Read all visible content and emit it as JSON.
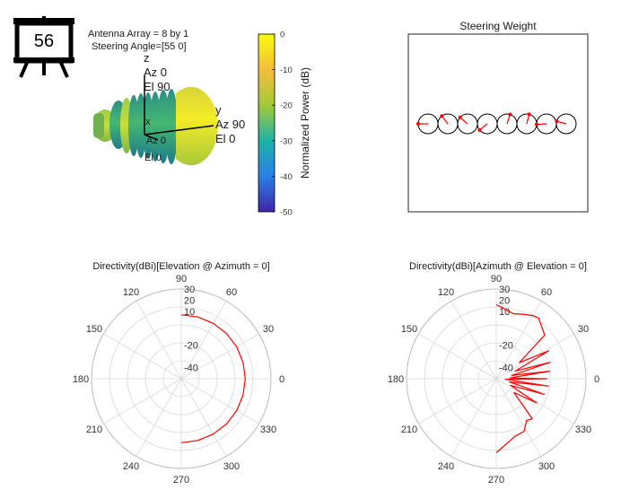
{
  "badge": {
    "number": "56"
  },
  "pattern3d": {
    "info_line1": "Antenna Array = 8 by 1",
    "info_line2": "Steering Angle=[55 0]",
    "axis_z": {
      "name": "z",
      "az": "Az 0",
      "el": "El 90"
    },
    "axis_y": {
      "name": "y",
      "az": "Az 90",
      "el": "El 0"
    },
    "axis_x": {
      "name": "x",
      "az": "Az 0",
      "el": "El 0"
    },
    "colorbar": {
      "label": "Normalized Power (dB)",
      "ticks": [
        0,
        -10,
        -20,
        -30,
        -40,
        -50
      ],
      "range": [
        -50,
        0
      ]
    }
  },
  "steering": {
    "title": "Steering Weight",
    "element_count": 8,
    "phases_deg": [
      180,
      127,
      139,
      219,
      72,
      76,
      183,
      165
    ],
    "circle_color": "#000000",
    "arrow_color": "#ff0000"
  },
  "chart_data": [
    {
      "type": "polar-line",
      "title": "Directivity(dBi)[Elevation @ Azimuth = 0]",
      "angle_ticks": [
        0,
        30,
        60,
        90,
        120,
        150,
        180,
        210,
        240,
        270,
        300,
        330
      ],
      "radial_ticks": [
        -40,
        -20,
        10,
        20,
        30
      ],
      "radial_range": [
        -50,
        30
      ],
      "color": "#ff0000",
      "series": [
        {
          "theta": [
            -90,
            -75,
            -60,
            -45,
            -30,
            -15,
            0,
            15,
            30,
            45,
            60,
            75,
            90
          ],
          "r": [
            7,
            7,
            7,
            7,
            7,
            7,
            7,
            7,
            7,
            7,
            7,
            7,
            7
          ]
        }
      ]
    },
    {
      "type": "polar-line",
      "title": "Directivity(dBi)[Azimuth @ Elevation = 0]",
      "angle_ticks": [
        0,
        30,
        60,
        90,
        120,
        150,
        180,
        210,
        240,
        270,
        300,
        330
      ],
      "radial_ticks": [
        -40,
        -20,
        10,
        20,
        30
      ],
      "radial_range": [
        -50,
        30
      ],
      "color": "#ff0000",
      "series": [
        {
          "theta": [
            -90,
            -72,
            -62,
            -54,
            -48,
            -38,
            -31,
            -25,
            -18,
            -14,
            -8,
            -4,
            0,
            3,
            8,
            12,
            17,
            22,
            28,
            35,
            42,
            48,
            55,
            60,
            68,
            75,
            82,
            86,
            90
          ],
          "r": [
            16,
            4,
            3,
            -4,
            -2,
            -30,
            -8,
            -36,
            -5,
            -38,
            -3,
            -42,
            -5,
            -38,
            -2,
            -36,
            0,
            -32,
            3,
            -25,
            8,
            11,
            16,
            15,
            12,
            10,
            12,
            14,
            16
          ]
        }
      ]
    }
  ]
}
